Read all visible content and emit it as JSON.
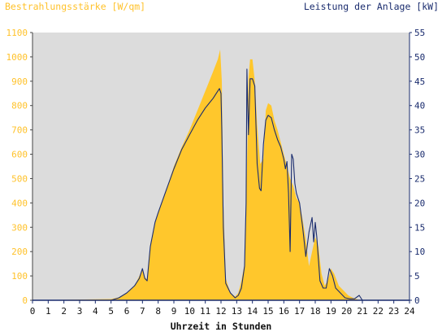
{
  "chart_data": {
    "type": "area",
    "title": "",
    "ylabel_left": "Bestrahlungsstärke [W/qm]",
    "ylabel_right": "Leistung der Anlage [kW]",
    "xlabel": "Uhrzeit in Stunden",
    "xlim": [
      0,
      24
    ],
    "ylim_left": [
      0,
      1100
    ],
    "ylim_right": [
      0,
      55
    ],
    "x_ticks": [
      "0",
      "1",
      "2",
      "3",
      "4",
      "5",
      "6",
      "7",
      "8",
      "9",
      "10",
      "11",
      "12",
      "13",
      "14",
      "15",
      "16",
      "17",
      "18",
      "19",
      "20",
      "21",
      "22",
      "23",
      "24"
    ],
    "y_ticks_left": [
      "0",
      "100",
      "200",
      "300",
      "400",
      "500",
      "600",
      "700",
      "800",
      "900",
      "1000",
      "1100"
    ],
    "y_ticks_right": [
      "0",
      "5",
      "10",
      "15",
      "20",
      "25",
      "30",
      "35",
      "40",
      "45",
      "50",
      "55"
    ],
    "grid": false,
    "colors": {
      "irradiance": "#ffc72c",
      "power": "#1a2c6e",
      "plot_bg": "#dcdcdc"
    },
    "series": [
      {
        "name": "Bestrahlungsstärke [W/qm]",
        "axis": "left",
        "style": "area",
        "x": [
          0,
          5.0,
          5.5,
          6.0,
          6.5,
          6.8,
          7.0,
          7.15,
          7.3,
          7.5,
          7.8,
          8.0,
          8.5,
          9.0,
          9.5,
          10.0,
          10.5,
          11.0,
          11.5,
          11.8,
          11.95,
          12.05,
          12.15,
          12.3,
          12.6,
          12.9,
          13.1,
          13.3,
          13.5,
          13.6,
          13.7,
          13.75,
          13.85,
          14.0,
          14.15,
          14.3,
          14.5,
          14.7,
          14.85,
          15.0,
          15.2,
          15.4,
          15.6,
          15.8,
          16.0,
          16.2,
          16.4,
          16.6,
          16.8,
          17.0,
          17.2,
          17.4,
          17.6,
          17.8,
          18.0,
          18.2,
          18.4,
          18.6,
          18.8,
          19.0,
          19.2,
          19.5,
          19.8,
          20.1,
          20.4,
          20.7,
          21.0,
          24
        ],
        "y": [
          0,
          5,
          12,
          30,
          60,
          100,
          125,
          95,
          85,
          230,
          320,
          360,
          450,
          550,
          630,
          700,
          780,
          860,
          940,
          990,
          1030,
          900,
          400,
          90,
          30,
          15,
          30,
          80,
          150,
          400,
          700,
          910,
          990,
          990,
          900,
          720,
          560,
          580,
          780,
          810,
          800,
          740,
          700,
          650,
          600,
          550,
          500,
          470,
          420,
          400,
          330,
          250,
          140,
          200,
          260,
          220,
          110,
          60,
          80,
          130,
          110,
          60,
          40,
          20,
          10,
          3,
          0,
          0
        ]
      },
      {
        "name": "Leistung der Anlage [kW]",
        "axis": "right",
        "style": "line",
        "x": [
          0,
          5.0,
          5.5,
          6.0,
          6.5,
          6.8,
          7.0,
          7.15,
          7.3,
          7.5,
          7.8,
          8.0,
          8.5,
          9.0,
          9.5,
          10.0,
          10.5,
          11.0,
          11.5,
          11.8,
          11.9,
          12.0,
          12.05,
          12.15,
          12.3,
          12.6,
          12.9,
          13.1,
          13.3,
          13.5,
          13.6,
          13.65,
          13.7,
          13.75,
          13.85,
          14.0,
          14.15,
          14.3,
          14.45,
          14.55,
          14.7,
          14.85,
          15.0,
          15.2,
          15.4,
          15.6,
          15.8,
          16.0,
          16.1,
          16.2,
          16.3,
          16.4,
          16.5,
          16.6,
          16.7,
          16.8,
          17.0,
          17.2,
          17.4,
          17.6,
          17.8,
          17.9,
          18.0,
          18.1,
          18.3,
          18.5,
          18.7,
          18.9,
          19.1,
          19.3,
          19.6,
          19.9,
          20.2,
          20.5,
          20.8,
          21.0,
          24
        ],
        "y": [
          0,
          0,
          0.5,
          1.5,
          3,
          4.5,
          6.5,
          4.5,
          4,
          11,
          16,
          18,
          22.5,
          27,
          31,
          34,
          37,
          39.5,
          41.5,
          43,
          43.5,
          42.5,
          35,
          15,
          3.5,
          1.5,
          0.5,
          1,
          2.5,
          7,
          20,
          47.5,
          40,
          34,
          45.5,
          45.5,
          44,
          28,
          23,
          22.5,
          32,
          37,
          38,
          37.5,
          35,
          33,
          31.5,
          29,
          27,
          28.5,
          22,
          10,
          30,
          29,
          24,
          22,
          20,
          15,
          9,
          14,
          17,
          12,
          16,
          13,
          4,
          2.5,
          2.5,
          6.5,
          5,
          2.5,
          1.5,
          0.5,
          0.3,
          0.3,
          1,
          0,
          0
        ]
      }
    ]
  }
}
